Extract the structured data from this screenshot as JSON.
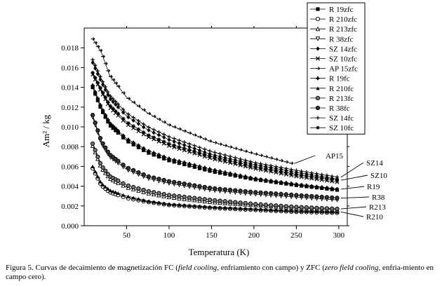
{
  "chart_data": {
    "type": "line",
    "xlabel": "Temperatura (K)",
    "ylabel": "Am² / kg",
    "xlim": [
      0,
      310
    ],
    "ylim": [
      0,
      0.02
    ],
    "x_ticks": [
      "50",
      "100",
      "150",
      "200",
      "250",
      "300"
    ],
    "y_ticks": [
      "0.000",
      "0.002",
      "0.004",
      "0.006",
      "0.008",
      "0.010",
      "0.012",
      "0.014",
      "0.016",
      "0.018"
    ],
    "legend_position": "top-right",
    "legend": [
      "R 19zfc",
      "R 210zfc",
      "R 213zfc",
      "R 38zfc",
      "SZ 14zfc",
      "SZ 10zfc",
      "AP 15zfc",
      "R 19fc",
      "R 210fc",
      "R 213fc",
      "R 38fc",
      "SZ 14fc",
      "SZ 10fc"
    ],
    "series": [
      {
        "name": "R 19zfc",
        "marker": "square-filled",
        "x": [
          10,
          20,
          30,
          50,
          75,
          100,
          150,
          200,
          250,
          300
        ],
        "y": [
          0.014,
          0.0118,
          0.0102,
          0.0086,
          0.0074,
          0.0066,
          0.0055,
          0.0047,
          0.0041,
          0.0036
        ]
      },
      {
        "name": "R 210zfc",
        "marker": "circle-open",
        "x": [
          10,
          20,
          30,
          50,
          75,
          100,
          150,
          200,
          250,
          300
        ],
        "y": [
          0.0058,
          0.0041,
          0.0034,
          0.0028,
          0.0024,
          0.0021,
          0.0018,
          0.0016,
          0.0014,
          0.0013
        ]
      },
      {
        "name": "R 213zfc",
        "marker": "triangle-open",
        "x": [
          10,
          20,
          30,
          50,
          75,
          100,
          150,
          200,
          250,
          300
        ],
        "y": [
          0.0081,
          0.0059,
          0.0048,
          0.0039,
          0.0033,
          0.0029,
          0.0024,
          0.0021,
          0.0018,
          0.0016
        ]
      },
      {
        "name": "R 38zfc",
        "marker": "triangle-down-open",
        "x": [
          10,
          20,
          30,
          50,
          75,
          100,
          150,
          200,
          250,
          300
        ],
        "y": [
          0.011,
          0.0084,
          0.007,
          0.0057,
          0.0048,
          0.0043,
          0.0036,
          0.0032,
          0.0029,
          0.0026
        ]
      },
      {
        "name": "SZ 14zfc",
        "marker": "diamond-filled",
        "x": [
          10,
          20,
          30,
          50,
          75,
          100,
          150,
          200,
          250,
          300
        ],
        "y": [
          0.0165,
          0.0146,
          0.0129,
          0.0111,
          0.0097,
          0.0087,
          0.0072,
          0.0062,
          0.0054,
          0.0047
        ]
      },
      {
        "name": "SZ 10zfc",
        "marker": "x",
        "x": [
          10,
          20,
          30,
          50,
          75,
          100,
          150,
          200,
          250,
          300
        ],
        "y": [
          0.0153,
          0.0136,
          0.012,
          0.0103,
          0.009,
          0.0081,
          0.0068,
          0.0058,
          0.005,
          0.0044
        ]
      },
      {
        "name": "AP 15zfc",
        "marker": "arrow",
        "x": [
          10,
          20,
          30,
          50,
          75,
          100,
          150,
          200,
          245
        ],
        "y": [
          0.0189,
          0.0176,
          0.0152,
          0.013,
          0.0114,
          0.0102,
          0.0085,
          0.0073,
          0.0063
        ]
      },
      {
        "name": "R 19fc",
        "marker": "plus-bold",
        "x": [
          10,
          20,
          30,
          50,
          75,
          100,
          150,
          200,
          250,
          300
        ],
        "y": [
          0.0142,
          0.012,
          0.0104,
          0.0088,
          0.0076,
          0.0068,
          0.0057,
          0.0048,
          0.0042,
          0.0037
        ]
      },
      {
        "name": "R 210fc",
        "marker": "triangle-filled",
        "x": [
          10,
          20,
          30,
          50,
          75,
          100,
          150,
          200,
          250,
          300
        ],
        "y": [
          0.006,
          0.0043,
          0.0036,
          0.003,
          0.0025,
          0.0022,
          0.0019,
          0.0017,
          0.0015,
          0.0014
        ]
      },
      {
        "name": "R 213fc",
        "marker": "circle-half",
        "x": [
          10,
          20,
          30,
          50,
          75,
          100,
          150,
          200,
          250,
          300
        ],
        "y": [
          0.0083,
          0.0061,
          0.005,
          0.0041,
          0.0035,
          0.0031,
          0.0026,
          0.0022,
          0.0019,
          0.0017
        ]
      },
      {
        "name": "R 38fc",
        "marker": "circle-dot",
        "x": [
          10,
          20,
          30,
          50,
          75,
          100,
          150,
          200,
          250,
          300
        ],
        "y": [
          0.0112,
          0.0086,
          0.0072,
          0.0059,
          0.005,
          0.0045,
          0.0038,
          0.0034,
          0.0031,
          0.0028
        ]
      },
      {
        "name": "SZ 14fc",
        "marker": "plus",
        "x": [
          10,
          20,
          30,
          50,
          75,
          100,
          150,
          200,
          250,
          300
        ],
        "y": [
          0.0168,
          0.0149,
          0.0132,
          0.0114,
          0.01,
          0.009,
          0.0075,
          0.0064,
          0.0056,
          0.0049
        ]
      },
      {
        "name": "SZ 10fc",
        "marker": "star",
        "x": [
          10,
          20,
          30,
          50,
          75,
          100,
          150,
          200,
          250,
          300
        ],
        "y": [
          0.0155,
          0.0138,
          0.0122,
          0.0105,
          0.0092,
          0.0083,
          0.007,
          0.006,
          0.0052,
          0.0046
        ]
      }
    ],
    "annotations": [
      {
        "text": "AP15",
        "series": "AP 15zfc"
      },
      {
        "text": "SZ14",
        "series": "SZ 14fc"
      },
      {
        "text": "SZ10",
        "series": "SZ 10fc"
      },
      {
        "text": "R19",
        "series": "R 19fc"
      },
      {
        "text": "R38",
        "series": "R 38fc"
      },
      {
        "text": "R213",
        "series": "R 213fc"
      },
      {
        "text": "R210",
        "series": "R 210fc"
      }
    ]
  },
  "caption": {
    "part1": "Figura 5. Curvas de decaimiento de magnetización FC (",
    "em1": "field cooling",
    "part2": ", enfriamiento con campo) y ZFC (",
    "em2": "zero field cooling",
    "part3": ", enfria-miento en campo cero)."
  }
}
